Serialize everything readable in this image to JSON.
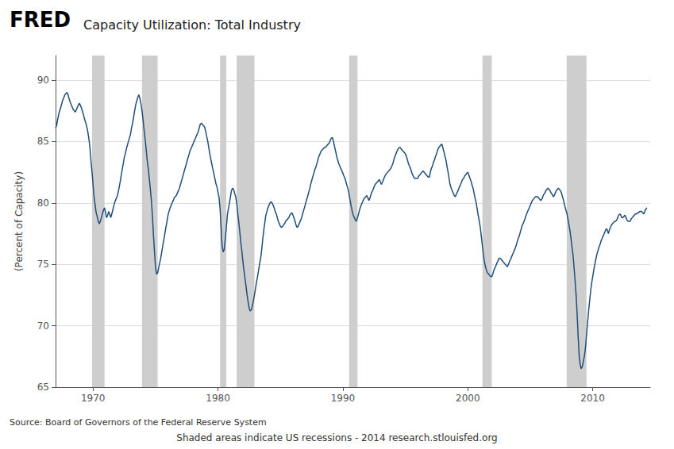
{
  "chart_data": {
    "type": "line",
    "title": "Capacity Utilization: Total Industry",
    "ylabel": "(Percent of Capacity)",
    "annotations": [
      "FRED",
      "Source: Board of Governors of the Federal Reserve System",
      "Shaded areas indicate US recessions - 2014 research.stlouisfed.org"
    ],
    "color": "#1f4e79",
    "xlim": [
      1967.0,
      2014.6
    ],
    "xticks": [
      1970,
      1980,
      1990,
      2000,
      2010
    ],
    "ylim": [
      65,
      92
    ],
    "yticks": [
      65,
      70,
      75,
      80,
      85,
      90
    ],
    "grid": true,
    "recession_bands": {
      "color": "#cecece",
      "ranges": [
        [
          1969.92,
          1970.92
        ],
        [
          1973.92,
          1975.17
        ],
        [
          1980.17,
          1980.67
        ],
        [
          1981.5,
          1982.92
        ],
        [
          1990.5,
          1991.17
        ],
        [
          2001.17,
          2001.92
        ],
        [
          2007.92,
          2009.5
        ]
      ]
    },
    "x": [
      1967.0,
      1967.08,
      1967.17,
      1967.25,
      1967.33,
      1967.42,
      1967.5,
      1967.58,
      1967.67,
      1967.75,
      1967.83,
      1967.92,
      1968.0,
      1968.08,
      1968.17,
      1968.25,
      1968.33,
      1968.42,
      1968.5,
      1968.58,
      1968.67,
      1968.75,
      1968.83,
      1968.92,
      1969.0,
      1969.08,
      1969.17,
      1969.25,
      1969.33,
      1969.42,
      1969.5,
      1969.58,
      1969.67,
      1969.75,
      1969.83,
      1969.92,
      1970.0,
      1970.08,
      1970.17,
      1970.25,
      1970.33,
      1970.42,
      1970.5,
      1970.58,
      1970.67,
      1970.75,
      1970.83,
      1970.92,
      1971.0,
      1971.08,
      1971.17,
      1971.25,
      1971.33,
      1971.42,
      1971.5,
      1971.58,
      1971.67,
      1971.75,
      1971.83,
      1971.92,
      1972.0,
      1972.08,
      1972.17,
      1972.25,
      1972.33,
      1972.42,
      1972.5,
      1972.58,
      1972.67,
      1972.75,
      1972.83,
      1972.92,
      1973.0,
      1973.08,
      1973.17,
      1973.25,
      1973.33,
      1973.42,
      1973.5,
      1973.58,
      1973.67,
      1973.75,
      1973.83,
      1973.92,
      1974.0,
      1974.08,
      1974.17,
      1974.25,
      1974.33,
      1974.42,
      1974.5,
      1974.58,
      1974.67,
      1974.75,
      1974.83,
      1974.92,
      1975.0,
      1975.08,
      1975.17,
      1975.25,
      1975.33,
      1975.42,
      1975.5,
      1975.58,
      1975.67,
      1975.75,
      1975.83,
      1975.92,
      1976.0,
      1976.08,
      1976.17,
      1976.25,
      1976.33,
      1976.42,
      1976.5,
      1976.58,
      1976.67,
      1976.75,
      1976.83,
      1976.92,
      1977.0,
      1977.08,
      1977.17,
      1977.25,
      1977.33,
      1977.42,
      1977.5,
      1977.58,
      1977.67,
      1977.75,
      1977.83,
      1977.92,
      1978.0,
      1978.08,
      1978.17,
      1978.25,
      1978.33,
      1978.42,
      1978.5,
      1978.58,
      1978.67,
      1978.75,
      1978.83,
      1978.92,
      1979.0,
      1979.08,
      1979.17,
      1979.25,
      1979.33,
      1979.42,
      1979.5,
      1979.58,
      1979.67,
      1979.75,
      1979.83,
      1979.92,
      1980.0,
      1980.08,
      1980.17,
      1980.25,
      1980.33,
      1980.42,
      1980.5,
      1980.58,
      1980.67,
      1980.75,
      1980.83,
      1980.92,
      1981.0,
      1981.08,
      1981.17,
      1981.25,
      1981.33,
      1981.42,
      1981.5,
      1981.58,
      1981.67,
      1981.75,
      1981.83,
      1981.92,
      1982.0,
      1982.08,
      1982.17,
      1982.25,
      1982.33,
      1982.42,
      1982.5,
      1982.58,
      1982.67,
      1982.75,
      1982.83,
      1982.92,
      1983.0,
      1983.08,
      1983.17,
      1983.25,
      1983.33,
      1983.42,
      1983.5,
      1983.58,
      1983.67,
      1983.75,
      1983.83,
      1983.92,
      1984.0,
      1984.08,
      1984.17,
      1984.25,
      1984.33,
      1984.42,
      1984.5,
      1984.58,
      1984.67,
      1984.75,
      1984.83,
      1984.92,
      1985.0,
      1985.08,
      1985.17,
      1985.25,
      1985.33,
      1985.42,
      1985.5,
      1985.58,
      1985.67,
      1985.75,
      1985.83,
      1985.92,
      1986.0,
      1986.08,
      1986.17,
      1986.25,
      1986.33,
      1986.42,
      1986.5,
      1986.58,
      1986.67,
      1986.75,
      1986.83,
      1986.92,
      1987.0,
      1987.08,
      1987.17,
      1987.25,
      1987.33,
      1987.42,
      1987.5,
      1987.58,
      1987.67,
      1987.75,
      1987.83,
      1987.92,
      1988.0,
      1988.08,
      1988.17,
      1988.25,
      1988.33,
      1988.42,
      1988.5,
      1988.58,
      1988.67,
      1988.75,
      1988.83,
      1988.92,
      1989.0,
      1989.08,
      1989.17,
      1989.25,
      1989.33,
      1989.42,
      1989.5,
      1989.58,
      1989.67,
      1989.75,
      1989.83,
      1989.92,
      1990.0,
      1990.08,
      1990.17,
      1990.25,
      1990.33,
      1990.42,
      1990.5,
      1990.58,
      1990.67,
      1990.75,
      1990.83,
      1990.92,
      1991.0,
      1991.08,
      1991.17,
      1991.25,
      1991.33,
      1991.42,
      1991.5,
      1991.58,
      1991.67,
      1991.75,
      1991.83,
      1991.92,
      1992.0,
      1992.08,
      1992.17,
      1992.25,
      1992.33,
      1992.42,
      1992.5,
      1992.58,
      1992.67,
      1992.75,
      1992.83,
      1992.92,
      1993.0,
      1993.08,
      1993.17,
      1993.25,
      1993.33,
      1993.42,
      1993.5,
      1993.58,
      1993.67,
      1993.75,
      1993.83,
      1993.92,
      1994.0,
      1994.08,
      1994.17,
      1994.25,
      1994.33,
      1994.42,
      1994.5,
      1994.58,
      1994.67,
      1994.75,
      1994.83,
      1994.92,
      1995.0,
      1995.08,
      1995.17,
      1995.25,
      1995.33,
      1995.42,
      1995.5,
      1995.58,
      1995.67,
      1995.75,
      1995.83,
      1995.92,
      1996.0,
      1996.08,
      1996.17,
      1996.25,
      1996.33,
      1996.42,
      1996.5,
      1996.58,
      1996.67,
      1996.75,
      1996.83,
      1996.92,
      1997.0,
      1997.08,
      1997.17,
      1997.25,
      1997.33,
      1997.42,
      1997.5,
      1997.58,
      1997.67,
      1997.75,
      1997.83,
      1997.92,
      1998.0,
      1998.08,
      1998.17,
      1998.25,
      1998.33,
      1998.42,
      1998.5,
      1998.58,
      1998.67,
      1998.75,
      1998.83,
      1998.92,
      1999.0,
      1999.08,
      1999.17,
      1999.25,
      1999.33,
      1999.42,
      1999.5,
      1999.58,
      1999.67,
      1999.75,
      1999.83,
      1999.92,
      2000.0,
      2000.08,
      2000.17,
      2000.25,
      2000.33,
      2000.42,
      2000.5,
      2000.58,
      2000.67,
      2000.75,
      2000.83,
      2000.92,
      2001.0,
      2001.08,
      2001.17,
      2001.25,
      2001.33,
      2001.42,
      2001.5,
      2001.58,
      2001.67,
      2001.75,
      2001.83,
      2001.92,
      2002.0,
      2002.08,
      2002.17,
      2002.25,
      2002.33,
      2002.42,
      2002.5,
      2002.58,
      2002.67,
      2002.75,
      2002.83,
      2002.92,
      2003.0,
      2003.08,
      2003.17,
      2003.25,
      2003.33,
      2003.42,
      2003.5,
      2003.58,
      2003.67,
      2003.75,
      2003.83,
      2003.92,
      2004.0,
      2004.08,
      2004.17,
      2004.25,
      2004.33,
      2004.42,
      2004.5,
      2004.58,
      2004.67,
      2004.75,
      2004.83,
      2004.92,
      2005.0,
      2005.08,
      2005.17,
      2005.25,
      2005.33,
      2005.42,
      2005.5,
      2005.58,
      2005.67,
      2005.75,
      2005.83,
      2005.92,
      2006.0,
      2006.08,
      2006.17,
      2006.25,
      2006.33,
      2006.42,
      2006.5,
      2006.58,
      2006.67,
      2006.75,
      2006.83,
      2006.92,
      2007.0,
      2007.08,
      2007.17,
      2007.25,
      2007.33,
      2007.42,
      2007.5,
      2007.58,
      2007.67,
      2007.75,
      2007.83,
      2007.92,
      2008.0,
      2008.08,
      2008.17,
      2008.25,
      2008.33,
      2008.42,
      2008.5,
      2008.58,
      2008.67,
      2008.75,
      2008.83,
      2008.92,
      2009.0,
      2009.08,
      2009.17,
      2009.25,
      2009.33,
      2009.42,
      2009.5,
      2009.58,
      2009.67,
      2009.75,
      2009.83,
      2009.92,
      2010.0,
      2010.08,
      2010.17,
      2010.25,
      2010.33,
      2010.42,
      2010.5,
      2010.58,
      2010.67,
      2010.75,
      2010.83,
      2010.92,
      2011.0,
      2011.08,
      2011.17,
      2011.25,
      2011.33,
      2011.42,
      2011.5,
      2011.58,
      2011.67,
      2011.75,
      2011.83,
      2011.92,
      2012.0,
      2012.08,
      2012.17,
      2012.25,
      2012.33,
      2012.42,
      2012.5,
      2012.58,
      2012.67,
      2012.75,
      2012.83,
      2012.92,
      2013.0,
      2013.08,
      2013.17,
      2013.25,
      2013.33,
      2013.42,
      2013.5,
      2013.58,
      2013.67,
      2013.75,
      2013.83,
      2013.92,
      2014.0,
      2014.08,
      2014.17,
      2014.25,
      2014.33
    ],
    "values": [
      86.1,
      86.3,
      86.8,
      87.2,
      87.5,
      87.8,
      88.1,
      88.4,
      88.6,
      88.8,
      88.9,
      89.0,
      88.8,
      88.5,
      88.2,
      88.0,
      87.8,
      87.6,
      87.5,
      87.4,
      87.6,
      87.8,
      88.0,
      88.1,
      87.9,
      87.7,
      87.4,
      87.1,
      86.8,
      86.5,
      86.2,
      85.8,
      85.2,
      84.5,
      83.5,
      82.5,
      81.5,
      80.5,
      79.8,
      79.2,
      78.9,
      78.5,
      78.3,
      78.5,
      78.8,
      79.1,
      79.4,
      79.6,
      79.2,
      78.8,
      79.0,
      79.3,
      79.1,
      78.8,
      79.1,
      79.4,
      79.8,
      80.1,
      80.3,
      80.5,
      80.8,
      81.2,
      81.7,
      82.2,
      82.7,
      83.2,
      83.7,
      84.0,
      84.4,
      84.7,
      85.0,
      85.3,
      85.6,
      86.1,
      86.5,
      87.0,
      87.5,
      88.0,
      88.3,
      88.6,
      88.8,
      88.5,
      88.1,
      87.5,
      86.8,
      86.0,
      85.2,
      84.4,
      83.5,
      82.8,
      82.0,
      81.2,
      80.2,
      79.0,
      77.5,
      76.0,
      74.8,
      74.2,
      74.3,
      74.7,
      75.1,
      75.5,
      76.0,
      76.5,
      77.0,
      77.5,
      78.0,
      78.5,
      79.0,
      79.3,
      79.6,
      79.8,
      80.0,
      80.2,
      80.4,
      80.5,
      80.6,
      80.8,
      81.0,
      81.2,
      81.5,
      81.8,
      82.1,
      82.4,
      82.7,
      83.0,
      83.3,
      83.6,
      83.9,
      84.2,
      84.4,
      84.6,
      84.8,
      85.0,
      85.2,
      85.4,
      85.6,
      85.8,
      86.1,
      86.4,
      86.5,
      86.4,
      86.3,
      86.2,
      85.9,
      85.5,
      85.1,
      84.6,
      84.1,
      83.6,
      83.2,
      82.8,
      82.4,
      82.0,
      81.6,
      81.3,
      80.9,
      80.5,
      79.5,
      78.0,
      76.5,
      76.0,
      76.2,
      77.0,
      78.0,
      79.0,
      79.5,
      80.0,
      80.5,
      81.0,
      81.2,
      81.1,
      80.8,
      80.5,
      80.0,
      79.2,
      78.4,
      77.6,
      76.8,
      76.0,
      75.2,
      74.5,
      73.8,
      73.2,
      72.5,
      71.9,
      71.4,
      71.2,
      71.3,
      71.6,
      72.0,
      72.5,
      73.0,
      73.5,
      74.0,
      74.5,
      75.0,
      75.5,
      76.2,
      77.0,
      77.8,
      78.4,
      79.0,
      79.3,
      79.6,
      79.8,
      80.0,
      80.1,
      80.0,
      79.8,
      79.6,
      79.3,
      79.1,
      78.8,
      78.5,
      78.3,
      78.1,
      78.0,
      78.1,
      78.2,
      78.3,
      78.5,
      78.6,
      78.7,
      78.8,
      79.0,
      79.1,
      79.2,
      79.0,
      78.8,
      78.5,
      78.2,
      78.0,
      78.1,
      78.3,
      78.5,
      78.7,
      79.0,
      79.3,
      79.6,
      79.9,
      80.2,
      80.5,
      80.8,
      81.1,
      81.5,
      81.8,
      82.1,
      82.4,
      82.7,
      82.9,
      83.2,
      83.5,
      83.8,
      84.0,
      84.2,
      84.3,
      84.4,
      84.5,
      84.5,
      84.6,
      84.7,
      84.8,
      84.9,
      85.1,
      85.3,
      85.3,
      85.0,
      84.6,
      84.2,
      83.8,
      83.5,
      83.2,
      83.0,
      82.8,
      82.6,
      82.4,
      82.2,
      82.0,
      81.7,
      81.4,
      81.1,
      80.7,
      80.2,
      79.7,
      79.3,
      79.0,
      78.8,
      78.6,
      78.5,
      78.8,
      79.1,
      79.4,
      79.7,
      79.9,
      80.1,
      80.3,
      80.4,
      80.5,
      80.6,
      80.4,
      80.2,
      80.4,
      80.7,
      80.9,
      81.1,
      81.3,
      81.5,
      81.6,
      81.7,
      81.8,
      81.9,
      81.7,
      81.5,
      81.7,
      81.9,
      82.1,
      82.3,
      82.4,
      82.5,
      82.6,
      82.7,
      82.8,
      83.0,
      83.2,
      83.5,
      83.8,
      84.0,
      84.2,
      84.4,
      84.5,
      84.5,
      84.4,
      84.3,
      84.2,
      84.1,
      84.0,
      83.8,
      83.5,
      83.2,
      83.0,
      82.8,
      82.5,
      82.3,
      82.1,
      82.0,
      82.0,
      82.0,
      82.0,
      82.2,
      82.3,
      82.4,
      82.5,
      82.6,
      82.5,
      82.4,
      82.3,
      82.2,
      82.1,
      82.1,
      82.5,
      82.8,
      83.0,
      83.3,
      83.5,
      83.8,
      84.0,
      84.3,
      84.5,
      84.6,
      84.7,
      84.8,
      84.5,
      84.2,
      83.8,
      83.5,
      83.0,
      82.5,
      82.0,
      81.5,
      81.2,
      81.0,
      80.8,
      80.6,
      80.5,
      80.7,
      80.9,
      81.1,
      81.3,
      81.5,
      81.7,
      81.9,
      82.0,
      82.2,
      82.3,
      82.4,
      82.5,
      82.3,
      82.0,
      81.8,
      81.5,
      81.2,
      80.8,
      80.4,
      80.0,
      79.5,
      79.0,
      78.5,
      78.0,
      77.3,
      76.5,
      75.8,
      75.2,
      74.8,
      74.5,
      74.3,
      74.2,
      74.1,
      74.0,
      74.0,
      74.2,
      74.5,
      74.7,
      74.9,
      75.1,
      75.3,
      75.5,
      75.5,
      75.4,
      75.3,
      75.2,
      75.1,
      75.0,
      74.9,
      74.8,
      75.0,
      75.2,
      75.4,
      75.6,
      75.8,
      76.0,
      76.2,
      76.4,
      76.7,
      77.0,
      77.2,
      77.5,
      77.8,
      78.1,
      78.3,
      78.5,
      78.7,
      79.0,
      79.2,
      79.4,
      79.6,
      79.8,
      80.0,
      80.2,
      80.3,
      80.4,
      80.5,
      80.5,
      80.5,
      80.4,
      80.3,
      80.2,
      80.3,
      80.5,
      80.7,
      80.8,
      81.0,
      81.1,
      81.2,
      81.1,
      81.0,
      80.8,
      80.7,
      80.5,
      80.6,
      80.8,
      81.0,
      81.1,
      81.2,
      81.1,
      81.0,
      80.8,
      80.5,
      80.2,
      79.8,
      79.5,
      79.2,
      78.8,
      78.3,
      77.8,
      77.2,
      76.5,
      75.8,
      74.8,
      73.8,
      72.5,
      71.0,
      69.2,
      67.5,
      66.8,
      66.5,
      66.7,
      67.1,
      67.5,
      68.2,
      69.2,
      70.2,
      71.2,
      72.0,
      72.8,
      73.5,
      74.0,
      74.5,
      75.0,
      75.4,
      75.8,
      76.1,
      76.4,
      76.6,
      76.9,
      77.1,
      77.3,
      77.5,
      77.7,
      77.9,
      77.8,
      77.5,
      77.8,
      78.0,
      78.2,
      78.3,
      78.4,
      78.5,
      78.5,
      78.6,
      78.8,
      79.0,
      79.1,
      79.0,
      78.8,
      78.8,
      78.9,
      79.0,
      78.8,
      78.6,
      78.5,
      78.5,
      78.5,
      78.7,
      78.8,
      78.9,
      79.0,
      79.1,
      79.1,
      79.2,
      79.2,
      79.3,
      79.3,
      79.3,
      79.2,
      79.1,
      79.3,
      79.5,
      79.6
    ]
  }
}
